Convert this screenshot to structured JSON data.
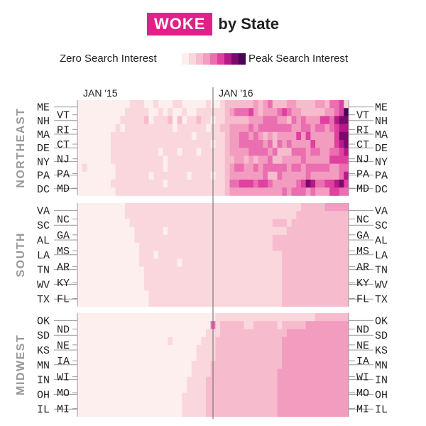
{
  "title": {
    "badge": "WOKE",
    "rest": "by State"
  },
  "legend": {
    "zero_label": "Zero Search Interest",
    "peak_label": "Peak Search Interest",
    "colors": [
      "#fcefee",
      "#f9d7dc",
      "#f6bccd",
      "#f29cc0",
      "#ea6eb1",
      "#e0409f",
      "#b51a87",
      "#7a0a6e",
      "#4a0456"
    ]
  },
  "colors": {
    "title_badge": "#e0218a"
  },
  "chart_data": {
    "type": "heatmap",
    "title": "WOKE by State",
    "x_markers": [
      "JAN '15",
      "JAN '16"
    ],
    "weeks": 57,
    "scale": {
      "min": 0,
      "max": 8,
      "min_label": "Zero Search Interest",
      "max_label": "Peak Search Interest"
    },
    "regions": [
      {
        "name": "NORTHEAST",
        "states": [
          "ME",
          "VT",
          "NH",
          "RI",
          "MA",
          "CT",
          "DE",
          "NJ",
          "NY",
          "PA",
          "DC",
          "MD"
        ],
        "left_labels": [
          "ME",
          "NH",
          "MA",
          "DE",
          "NY",
          "PA",
          "DC"
        ],
        "right_labels": [
          "ME",
          "NH",
          "MA",
          "DE",
          "NY",
          "PA",
          "DC"
        ],
        "inner_left_labels": [
          "VT",
          "RI",
          "CT",
          "NJ",
          "PA",
          "MD"
        ],
        "inner_right_labels": [
          "VT",
          "RI",
          "CT",
          "NJ",
          "PA",
          "MD"
        ],
        "rows": [
          "000000000001110010001100000100122222232342223322223324451",
          "000000000011111001010010011111123444532333454332222233458",
          "000000000111112011120201121101122222333444332434333554677",
          "000000001011111111110111111011223333434444444334434434566",
          "000000011111111111111111011111123344343232333353533333577",
          "000000011111111111111111111101123344444342434333353333567",
          "000000011111111110111011101111123333444434222444344334456",
          "000000011111111111011111111111122332323342233334333335555",
          "010000001111111111011111111111123443343444443443444443344",
          "000000001111111011111110111101123333333422433333433333346",
          "000000011111111111011111111111124455545543333345764455675",
          "000000001111111111111111111111123333333333343444343335544"
        ]
      },
      {
        "name": "SOUTH",
        "states": [
          "VA",
          "NC",
          "SC",
          "GA",
          "AL",
          "MS",
          "LA",
          "AR",
          "TN",
          "KY",
          "WV",
          "FL",
          "TX"
        ],
        "left_labels": [
          "VA",
          "SC",
          "AL",
          "LA",
          "TN",
          "WV",
          "TX"
        ],
        "inner_labels": [
          "NC",
          "GA",
          "MS",
          "AR",
          "KY",
          "FL"
        ],
        "rows": [
          "000000000011111111111111111111111111111111111112222233333",
          "000000000011111111111111111111111111111111111122222222222",
          "000000000001111111111111111111111111111112221222222222222",
          "000000000000111111011111111111111111111111112222222222222",
          "000000000000111111111111111111111111111112222222222222222",
          "000000000000011111111111111111111111111112222222222222222",
          "000000000000011101111111111111111111111111122222222222222",
          "000000000000011111111011111111111111111111122222222222222",
          "000000000000001111111111111111111111111111122222222222222",
          "000000000000001111111111111111111111111111122222222222222",
          "000000000000001111111111111111111111111111122222222222222",
          "000000000000000111111111111111111111111111122222222222222",
          "000000000000000111111111111111111111111111122222222222222"
        ]
      },
      {
        "name": "MIDWEST",
        "states": [
          "OK",
          "ND",
          "SD",
          "NE",
          "KS",
          "IA",
          "MN",
          "WI",
          "IN",
          "MO",
          "OH",
          "MI",
          "IL"
        ],
        "left_labels": [
          "OK",
          "SD",
          "KS",
          "MN",
          "IN",
          "OH",
          "IL"
        ],
        "inner_labels": [
          "ND",
          "NE",
          "IA",
          "WI",
          "MO",
          "MI"
        ],
        "rows": [
          "000000000000000000000000000001111111111111111111112222222",
          "000000000000000000000000000041222221122222122222333333333",
          "000000000000000000000000000111222222222222223333333333333",
          "000000000000000000010000001112222222222222233333333333333",
          "000000000000000000000000011112222222222222233333333333333",
          "000000000000000000000000011112222222222222233333333333333",
          "000000000000000000000000111122222222222222233333333333333",
          "000000000000000000000000111122222222222222333333333333333",
          "000000000000000000000001111222222222222222333333333333333",
          "000000000000000000000001111222222222222222333333333333333",
          "000000000000000000000011111222222222222222333333333333333",
          "000000000000000000000011111222222222222222333333333333333",
          "000000000000000000000011111222222222222222333333333333333"
        ]
      }
    ]
  }
}
